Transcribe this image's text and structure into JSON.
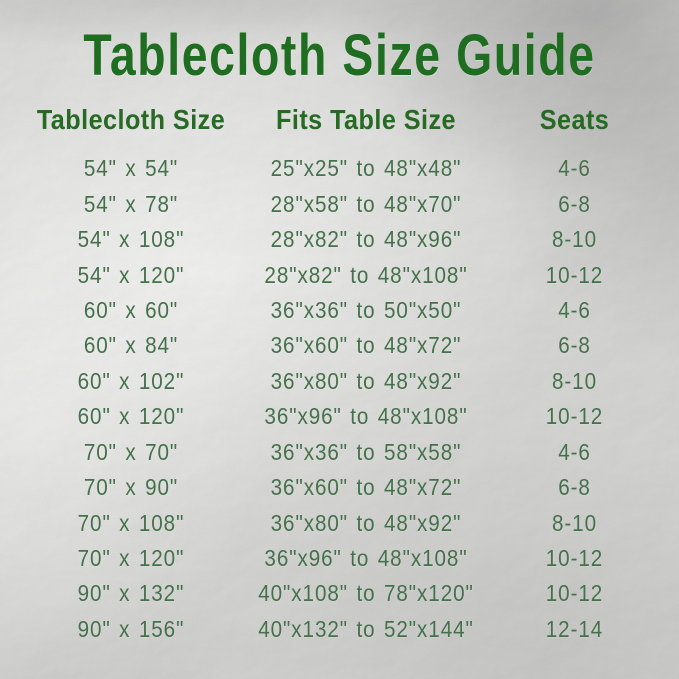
{
  "title": "Tablecloth Size Guide",
  "colors": {
    "title_green": "#1f6d20",
    "header_green": "#266a24",
    "data_green": "#44704a",
    "silver_base": "#c5c6c3"
  },
  "chart_data": {
    "type": "table",
    "title": "Tablecloth Size Guide",
    "columns": [
      "Tablecloth Size",
      "Fits Table Size",
      "Seats"
    ],
    "rows": [
      [
        "54\" x 54\"",
        "25\"x25\" to 48\"x48\"",
        "4-6"
      ],
      [
        "54\" x 78\"",
        "28\"x58\" to 48\"x70\"",
        "6-8"
      ],
      [
        "54\" x 108\"",
        "28\"x82\" to 48\"x96\"",
        "8-10"
      ],
      [
        "54\" x 120\"",
        "28\"x82\" to 48\"x108\"",
        "10-12"
      ],
      [
        "60\" x 60\"",
        "36\"x36\" to 50\"x50\"",
        "4-6"
      ],
      [
        "60\" x 84\"",
        "36\"x60\" to 48\"x72\"",
        "6-8"
      ],
      [
        "60\" x 102\"",
        "36\"x80\" to 48\"x92\"",
        "8-10"
      ],
      [
        "60\" x 120\"",
        "36\"x96\" to 48\"x108\"",
        "10-12"
      ],
      [
        "70\" x 70\"",
        "36\"x36\" to 58\"x58\"",
        "4-6"
      ],
      [
        "70\" x 90\"",
        "36\"x60\" to 48\"x72\"",
        "6-8"
      ],
      [
        "70\" x 108\"",
        "36\"x80\" to 48\"x92\"",
        "8-10"
      ],
      [
        "70\" x 120\"",
        "36\"x96\" to 48\"x108\"",
        "10-12"
      ],
      [
        "90\" x 132\"",
        "40\"x108\" to 78\"x120\"",
        "10-12"
      ],
      [
        "90\" x 156\"",
        "40\"x132\" to 52\"x144\"",
        "12-14"
      ]
    ],
    "layout": {
      "legend": "none",
      "grid": "off",
      "column_alignment": [
        "center",
        "center",
        "center"
      ]
    }
  }
}
